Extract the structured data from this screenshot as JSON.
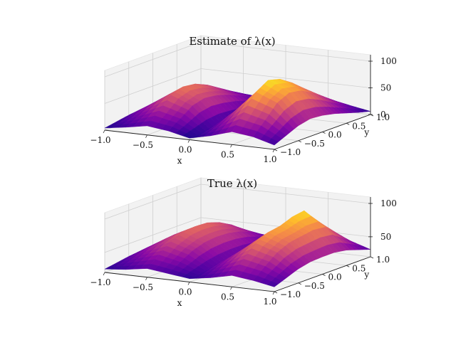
{
  "chart_data": [
    {
      "type": "surface",
      "title": "Estimate of λ(x)",
      "xlabel": "x",
      "ylabel": "y",
      "zlabel": "",
      "xlim": [
        -1.0,
        1.0
      ],
      "ylim": [
        -1.0,
        1.0
      ],
      "zlim": [
        0,
        100
      ],
      "x_ticks": [
        "−1.0",
        "−0.5",
        "0.0",
        "0.5",
        "1.0"
      ],
      "y_ticks": [
        "−1.0",
        "−0.5",
        "0.0",
        "0.5",
        "1.0"
      ],
      "z_ticks": [
        "0",
        "50",
        "100"
      ],
      "colormap": "plasma",
      "grid": true,
      "x": [
        -1.0,
        -0.75,
        -0.5,
        -0.25,
        0.0,
        0.25,
        0.5,
        0.75,
        1.0
      ],
      "y": [
        -1.0,
        -0.75,
        -0.5,
        -0.25,
        0.0,
        0.25,
        0.5,
        0.75,
        1.0
      ],
      "z": [
        [
          4,
          10,
          17,
          12,
          3,
          12,
          24,
          19,
          8
        ],
        [
          8,
          22,
          37,
          27,
          5,
          27,
          52,
          42,
          18
        ],
        [
          12,
          35,
          58,
          43,
          8,
          42,
          82,
          66,
          28
        ],
        [
          14,
          40,
          66,
          49,
          9,
          49,
          96,
          77,
          33
        ],
        [
          14,
          38,
          63,
          46,
          8,
          46,
          90,
          73,
          31
        ],
        [
          12,
          32,
          53,
          39,
          7,
          38,
          75,
          60,
          26
        ],
        [
          9,
          24,
          39,
          29,
          5,
          28,
          56,
          44,
          19
        ],
        [
          6,
          15,
          25,
          19,
          3,
          18,
          36,
          28,
          12
        ],
        [
          3,
          7,
          12,
          9,
          2,
          9,
          17,
          13,
          6
        ]
      ]
    },
    {
      "type": "surface",
      "title": "True λ(x)",
      "xlabel": "x",
      "ylabel": "y",
      "zlabel": "",
      "xlim": [
        -1.0,
        1.0
      ],
      "ylim": [
        -1.0,
        1.0
      ],
      "zlim": [
        20,
        100
      ],
      "x_ticks": [
        "−1.0",
        "−0.5",
        "0.0",
        "0.5",
        "1.0"
      ],
      "y_ticks": [
        "−1.0",
        "−0.5",
        "0.0",
        "0.5",
        "1.0"
      ],
      "z_ticks": [
        "50",
        "100"
      ],
      "colormap": "plasma",
      "grid": true,
      "x": [
        -1.0,
        -0.75,
        -0.5,
        -0.25,
        0.0,
        0.25,
        0.5,
        0.75,
        1.0
      ],
      "y": [
        -1.0,
        -0.75,
        -0.5,
        -0.25,
        0.0,
        0.25,
        0.5,
        0.75,
        1.0
      ],
      "z": [
        [
          25,
          28,
          33,
          29,
          25,
          30,
          37,
          33,
          27
        ],
        [
          28,
          38,
          47,
          40,
          28,
          41,
          55,
          48,
          34
        ],
        [
          31,
          47,
          60,
          50,
          31,
          51,
          72,
          62,
          41
        ],
        [
          33,
          52,
          68,
          56,
          33,
          57,
          82,
          70,
          45
        ],
        [
          34,
          54,
          70,
          58,
          34,
          59,
          85,
          73,
          46
        ],
        [
          34,
          53,
          69,
          57,
          34,
          58,
          92,
          76,
          46
        ],
        [
          32,
          49,
          63,
          53,
          32,
          54,
          95,
          74,
          43
        ],
        [
          30,
          42,
          53,
          45,
          30,
          46,
          74,
          58,
          37
        ],
        [
          27,
          33,
          39,
          35,
          27,
          36,
          47,
          41,
          31
        ]
      ]
    }
  ]
}
